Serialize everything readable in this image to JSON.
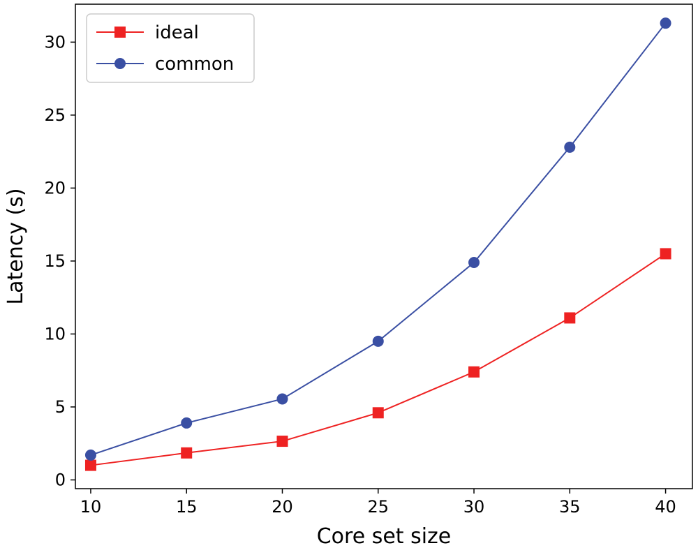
{
  "chart_data": {
    "type": "line",
    "title": "",
    "xlabel": "Core set size",
    "ylabel": "Latency (s)",
    "x": [
      10,
      15,
      20,
      25,
      30,
      35,
      40
    ],
    "xlim": [
      9.2,
      41.4
    ],
    "ylim": [
      -0.6,
      32.6
    ],
    "xticks": [
      10,
      15,
      20,
      25,
      30,
      35,
      40
    ],
    "yticks": [
      0,
      5,
      10,
      15,
      20,
      25,
      30
    ],
    "grid": false,
    "legend_position": "top-left",
    "series": [
      {
        "name": "ideal",
        "color": "#ee2222",
        "marker": "square",
        "values": [
          1.0,
          1.85,
          2.65,
          4.6,
          7.4,
          11.1,
          15.5
        ]
      },
      {
        "name": "common",
        "color": "#3a4fa3",
        "marker": "circle",
        "values": [
          1.7,
          3.9,
          5.55,
          9.5,
          14.9,
          22.8,
          31.3
        ]
      }
    ]
  }
}
